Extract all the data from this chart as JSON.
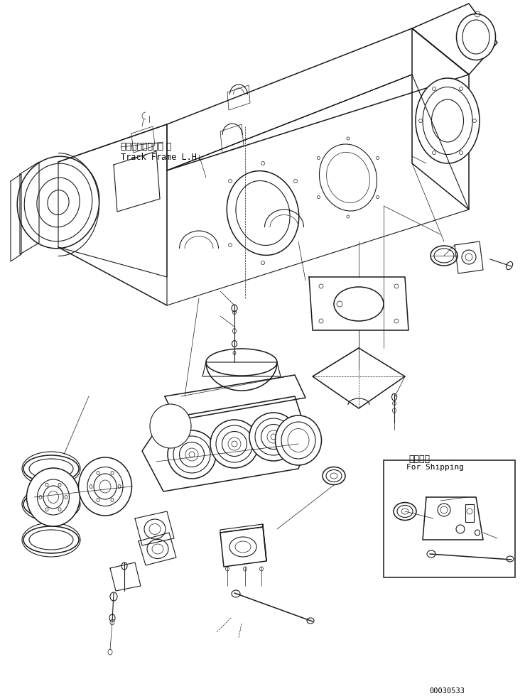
{
  "background_color": "#ffffff",
  "line_color": "#1a1a1a",
  "text_color": "#000000",
  "label_japanese_1": "トラックフレーム 左",
  "label_english_1": "Track Frame L.H.",
  "label_japanese_2": "運携部品",
  "label_english_2": "For Shipping",
  "part_number": "00030533",
  "fig_width": 7.39,
  "fig_height": 9.8,
  "dpi": 100
}
